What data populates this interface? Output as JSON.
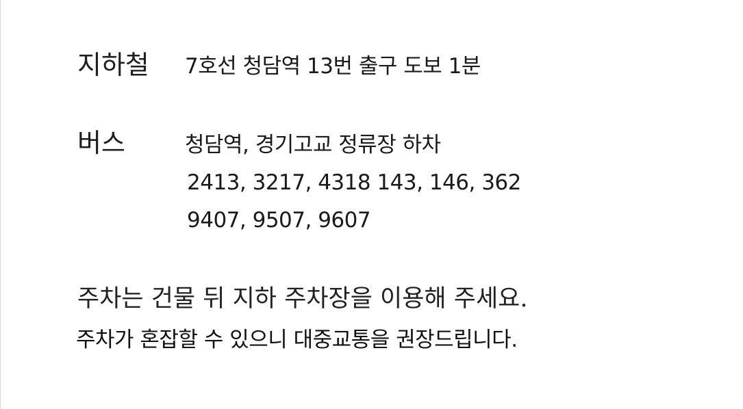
{
  "subway": {
    "label": "지하철",
    "text": "7호선 청담역 13번 출구  도보 1분"
  },
  "bus": {
    "label": "버스",
    "stop": "청담역, 경기고교 정류장 하차",
    "routes_line1": "2413, 3217, 4318   143, 146, 362",
    "routes_line2": "9407, 9507, 9607"
  },
  "parking": {
    "line1": "주차는 건물 뒤 지하 주차장을 이용해 주세요.",
    "line2": "주차가 혼잡할 수 있으니 대중교통을 권장드립니다."
  }
}
